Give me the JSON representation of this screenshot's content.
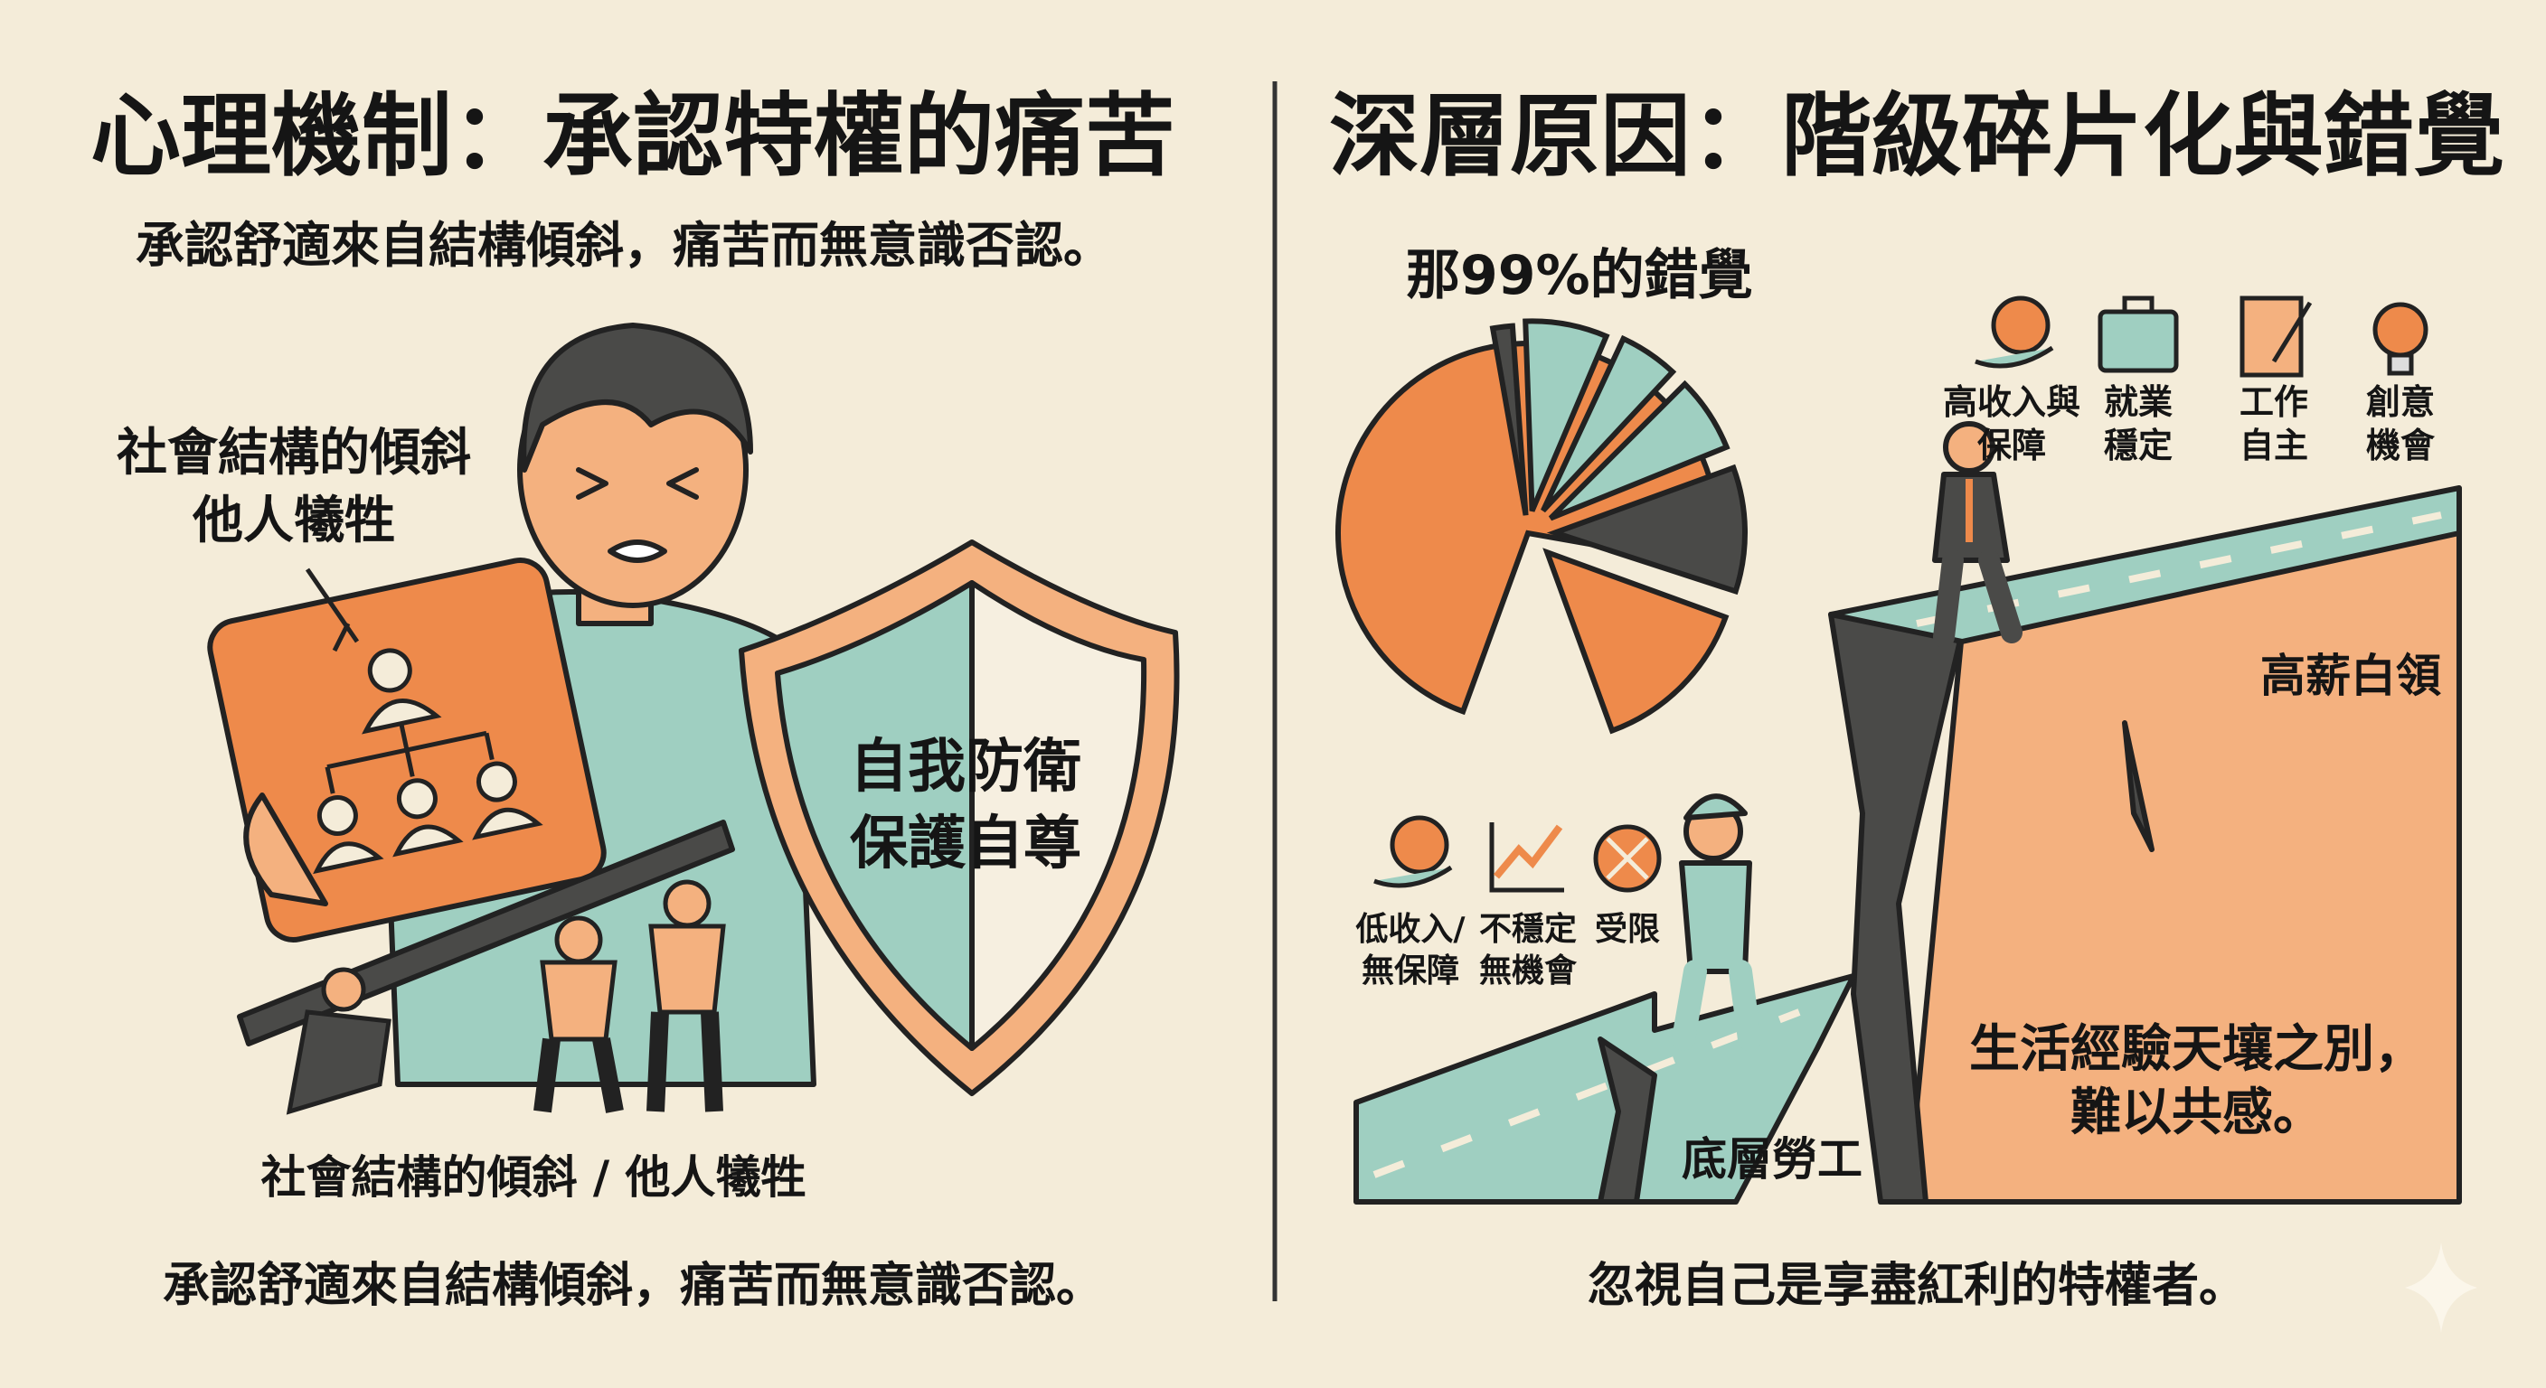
{
  "left": {
    "title": "心理機制：承認特權的痛苦",
    "subtitle": "承認舒適來自結構傾斜，痛苦而無意識否認。",
    "callout_line1": "社會結構的傾斜",
    "callout_line2": "他人犧牲",
    "shield_line1": "自我防衛",
    "shield_line2": "保護自尊",
    "bottom_label": "社會結構的傾斜 / 他人犧牲",
    "caption": "承認舒適來自結構傾斜，痛苦而無意識否認。"
  },
  "right": {
    "title": "深層原因：階級碎片化與錯覺",
    "pie_label": "那99%的錯覺",
    "top_icons": [
      {
        "icon": "money-bag-hand-icon",
        "line1": "高收入與",
        "line2": "保障"
      },
      {
        "icon": "briefcase-icon",
        "line1": "就業",
        "line2": "穩定"
      },
      {
        "icon": "document-pencil-icon",
        "line1": "工作",
        "line2": "自主"
      },
      {
        "icon": "lightbulb-icon",
        "line1": "創意",
        "line2": "機會"
      }
    ],
    "bottom_icons": [
      {
        "icon": "yen-coin-hand-icon",
        "line1": "低收入/",
        "line2": "無保障"
      },
      {
        "icon": "chart-up-icon",
        "line1": "不穩定",
        "line2": "無機會"
      },
      {
        "icon": "no-entry-icon",
        "line1": "受限",
        "line2": ""
      }
    ],
    "white_collar_label": "高薪白領",
    "worker_label": "底層勞工",
    "gap_line1": "生活經驗天壤之別，",
    "gap_line2": "難以共感。",
    "caption": "忽視自己是享盡紅利的特權者。"
  },
  "colors": {
    "background": "#f4ecd9",
    "orange": "#ee8a4b",
    "teal": "#9fcfc1",
    "dark": "#4a4a48",
    "peach": "#f4b17f"
  }
}
